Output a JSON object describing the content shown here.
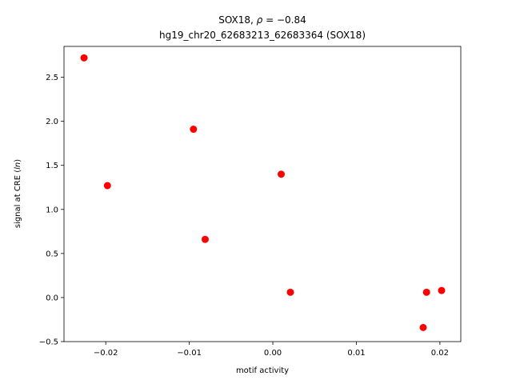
{
  "chart_data": {
    "type": "scatter",
    "title_line1": "SOX18, ρ = −0.84",
    "title_line2": "hg19_chr20_62683213_62683364 (SOX18)",
    "xlabel": "motif activity",
    "ylabel": "signal at CRE (ln)",
    "xlim": [
      -0.025,
      0.0225
    ],
    "ylim": [
      -0.5,
      2.85
    ],
    "xticks": [
      -0.02,
      -0.01,
      0.0,
      0.01,
      0.02
    ],
    "xtick_labels": [
      "−0.02",
      "−0.01",
      "0.00",
      "0.01",
      "0.02"
    ],
    "yticks": [
      -0.5,
      0.0,
      0.5,
      1.0,
      1.5,
      2.0,
      2.5
    ],
    "ytick_labels": [
      "−0.5",
      "0.0",
      "0.5",
      "1.0",
      "1.5",
      "2.0",
      "2.5"
    ],
    "grid": false,
    "marker_color": "#ff0000",
    "points": [
      {
        "x": -0.0226,
        "y": 2.72
      },
      {
        "x": -0.0198,
        "y": 1.27
      },
      {
        "x": -0.0095,
        "y": 1.91
      },
      {
        "x": -0.0081,
        "y": 0.66
      },
      {
        "x": 0.001,
        "y": 1.4
      },
      {
        "x": 0.0021,
        "y": 0.06
      },
      {
        "x": 0.018,
        "y": -0.34
      },
      {
        "x": 0.0184,
        "y": 0.06
      },
      {
        "x": 0.0202,
        "y": 0.08
      }
    ]
  }
}
